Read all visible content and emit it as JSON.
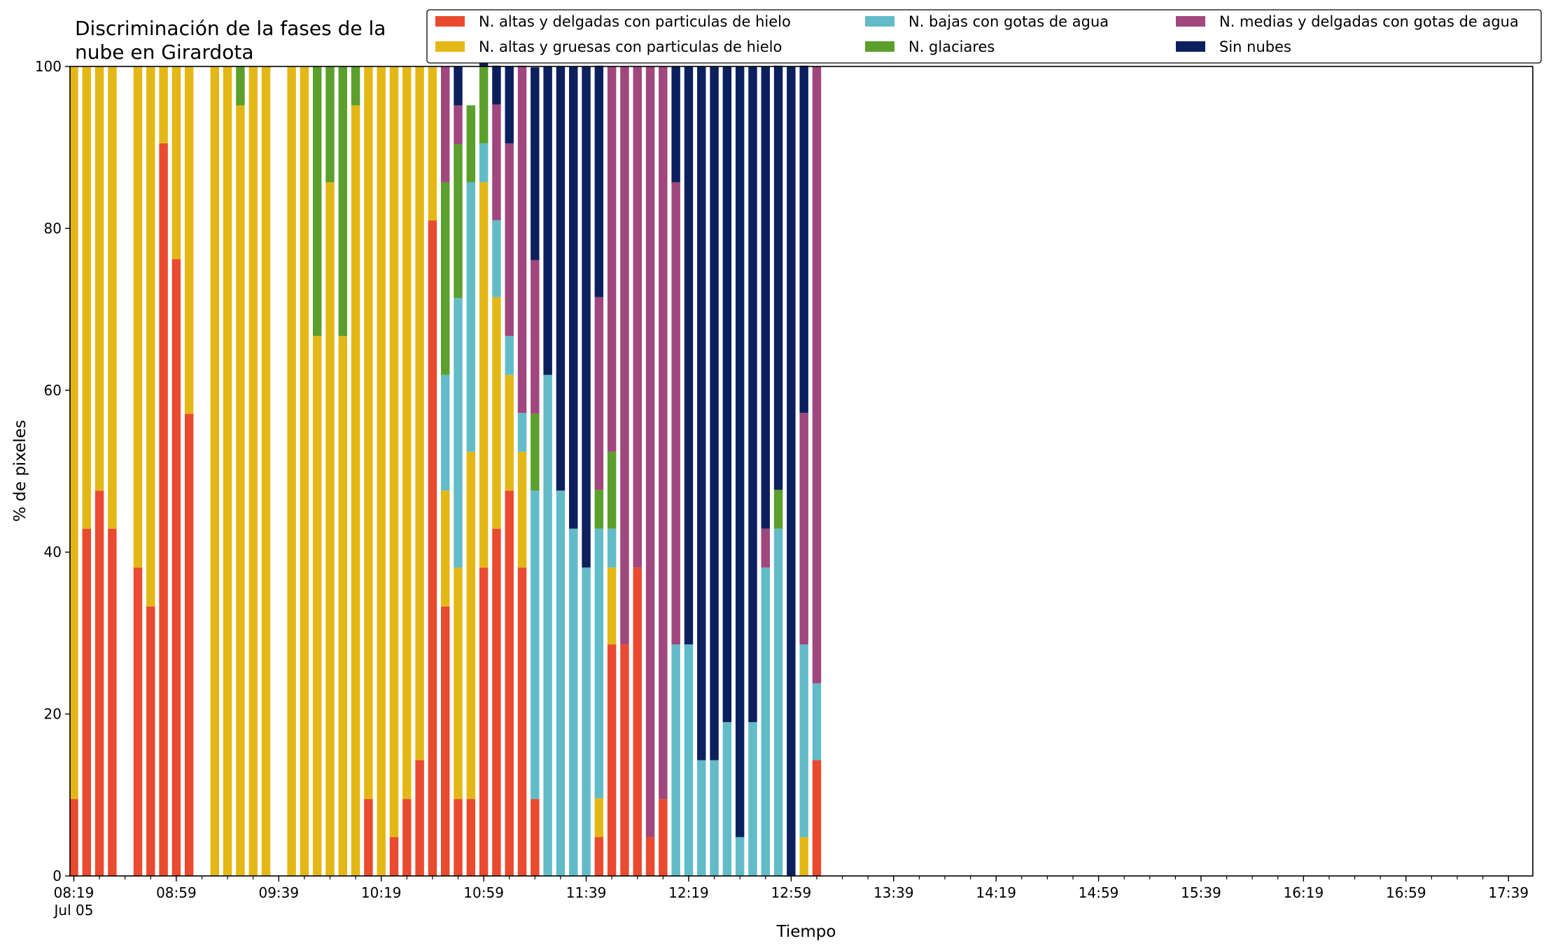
{
  "chart_data": {
    "type": "bar",
    "stacked": true,
    "title_lines": [
      "Discriminación de la fases de la",
      "nube en Girardota"
    ],
    "xlabel": "Tiempo",
    "ylabel": "% de pixeles",
    "ylim": [
      0,
      100
    ],
    "yticks": [
      "0",
      "20",
      "40",
      "60",
      "80",
      "100"
    ],
    "date_label": "Jul 05",
    "x_start_minutes": 499,
    "bar_step_minutes": 5,
    "x_range_minutes": [
      497.5,
      1068.5
    ],
    "minor_tick_step_minutes": 10,
    "major_ticks": [
      {
        "minute": 499,
        "label": "08:19"
      },
      {
        "minute": 539,
        "label": "08:59"
      },
      {
        "minute": 579,
        "label": "09:39"
      },
      {
        "minute": 619,
        "label": "10:19"
      },
      {
        "minute": 659,
        "label": "10:59"
      },
      {
        "minute": 699,
        "label": "11:39"
      },
      {
        "minute": 739,
        "label": "12:19"
      },
      {
        "minute": 779,
        "label": "12:59"
      },
      {
        "minute": 819,
        "label": "13:39"
      },
      {
        "minute": 859,
        "label": "14:19"
      },
      {
        "minute": 899,
        "label": "14:59"
      },
      {
        "minute": 939,
        "label": "15:39"
      },
      {
        "minute": 979,
        "label": "16:19"
      },
      {
        "minute": 1019,
        "label": "16:59"
      },
      {
        "minute": 1059,
        "label": "17:39"
      }
    ],
    "legend_position": "top-right",
    "series": [
      {
        "name": "N. altas y delgadas con particulas de hielo",
        "color": "#EA4A2F",
        "values": [
          9.5,
          42.9,
          47.6,
          42.9,
          0,
          38.1,
          33.3,
          90.5,
          76.2,
          57.1,
          0,
          0,
          0,
          0,
          0,
          0,
          0,
          0,
          0,
          0,
          0,
          0,
          0,
          9.5,
          0,
          4.8,
          9.5,
          14.3,
          81,
          33.3,
          9.5,
          9.5,
          38.1,
          42.9,
          47.6,
          38.1,
          9.5,
          0,
          0,
          0,
          0,
          4.8,
          28.6,
          28.6,
          38.1,
          4.8,
          9.5,
          0,
          0,
          0,
          0,
          0,
          0,
          0,
          0,
          0,
          0,
          0,
          14.3
        ]
      },
      {
        "name": "N. altas y gruesas con particulas de hielo",
        "color": "#E3B816",
        "values": [
          90.5,
          57.1,
          52.4,
          57.1,
          0,
          61.9,
          66.7,
          9.5,
          23.8,
          42.9,
          0,
          100,
          100,
          95.2,
          100,
          100,
          0,
          100,
          100,
          66.7,
          85.7,
          66.7,
          95.2,
          90.5,
          100,
          95.2,
          90.5,
          85.7,
          19,
          14.3,
          28.6,
          42.9,
          47.6,
          28.6,
          14.3,
          14.3,
          0,
          0,
          0,
          0,
          0,
          4.8,
          9.5,
          0,
          0,
          0,
          0,
          0,
          0,
          0,
          0,
          0,
          0,
          0,
          0,
          0,
          0,
          4.8,
          0
        ]
      },
      {
        "name": "N. bajas con gotas de agua",
        "color": "#62BCC8",
        "values": [
          0,
          0,
          0,
          0,
          0,
          0,
          0,
          0,
          0,
          0,
          0,
          0,
          0,
          0,
          0,
          0,
          0,
          0,
          0,
          0,
          0,
          0,
          0,
          0,
          0,
          0,
          0,
          0,
          0,
          14.3,
          33.3,
          33.3,
          4.8,
          9.5,
          4.8,
          4.8,
          38.1,
          61.9,
          47.6,
          42.9,
          38.1,
          33.3,
          4.8,
          0,
          0,
          0,
          0,
          28.6,
          28.6,
          14.3,
          14.3,
          19,
          4.8,
          19,
          38.1,
          42.9,
          0,
          23.8,
          9.5
        ]
      },
      {
        "name": "N. glaciares",
        "color": "#5B9F2C",
        "values": [
          0,
          0,
          0,
          0,
          0,
          0,
          0,
          0,
          0,
          0,
          0,
          0,
          0,
          4.8,
          0,
          0,
          0,
          0,
          0,
          33.3,
          14.3,
          33.3,
          4.8,
          0,
          0,
          0,
          0,
          0,
          0,
          23.8,
          19,
          9.5,
          9.5,
          0,
          0,
          0,
          9.5,
          0,
          0,
          0,
          0,
          4.8,
          9.5,
          0,
          0,
          0,
          0,
          0,
          0,
          0,
          0,
          0,
          0,
          0,
          0,
          4.8,
          0,
          0,
          0
        ]
      },
      {
        "name": "N. medias y delgadas con gotas de agua",
        "color": "#A0477D",
        "values": [
          0,
          0,
          0,
          0,
          0,
          0,
          0,
          0,
          0,
          0,
          0,
          0,
          0,
          0,
          0,
          0,
          0,
          0,
          0,
          0,
          0,
          0,
          0,
          0,
          0,
          0,
          0,
          0,
          0,
          14.3,
          4.8,
          0,
          0,
          14.3,
          23.8,
          42.9,
          19,
          0,
          0,
          0,
          0,
          23.8,
          47.6,
          71.4,
          61.9,
          95.2,
          90.5,
          57.1,
          0,
          0,
          0,
          0,
          0,
          0,
          4.8,
          0,
          0,
          28.6,
          76.2
        ]
      },
      {
        "name": "Sin nubes",
        "color": "#0C205E",
        "values": [
          0,
          0,
          0,
          0,
          0,
          0,
          0,
          0,
          0,
          0,
          0,
          0,
          0,
          0,
          0,
          0,
          0,
          0,
          0,
          0,
          0,
          0,
          0,
          0,
          0,
          0,
          0,
          0,
          0,
          0,
          4.8,
          0,
          4.8,
          4.8,
          9.5,
          0,
          23.8,
          38.1,
          52.4,
          57.1,
          61.9,
          28.6,
          0,
          0,
          0,
          0,
          0,
          14.3,
          71.4,
          85.7,
          85.7,
          81,
          95.2,
          81,
          57.1,
          52.4,
          100,
          42.9,
          0
        ]
      }
    ]
  }
}
